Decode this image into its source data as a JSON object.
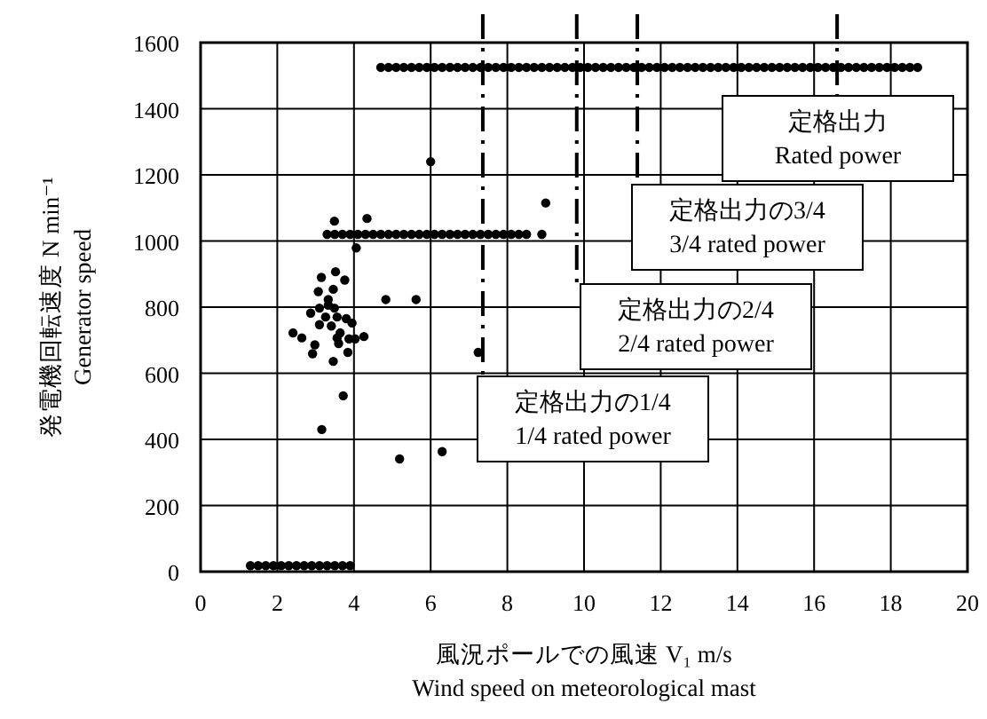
{
  "chart_data": {
    "type": "scatter",
    "xlabel": "風況ポールでの風速  V₁  m/s\nWind speed on meteorological mast",
    "ylabel": "発電機回転速度  N  min⁻¹\nGenerator speed",
    "xlim": [
      0,
      20
    ],
    "ylim": [
      0,
      1600
    ],
    "xticks": [
      0,
      2,
      4,
      6,
      8,
      10,
      12,
      14,
      16,
      18,
      20
    ],
    "yticks": [
      0,
      200,
      400,
      600,
      800,
      1000,
      1200,
      1400,
      1600
    ],
    "grid": true,
    "marker": "circle",
    "series": [
      {
        "color": "#000000",
        "x": [
          4.7,
          4.9,
          5.1,
          5.3,
          5.5,
          5.7,
          5.9,
          6.1,
          6.3,
          6.5,
          6.7,
          6.9,
          7.1,
          7.3,
          7.5,
          7.7,
          7.9,
          8.1,
          8.3,
          8.5,
          8.7,
          8.9,
          9.1,
          9.3,
          9.5,
          9.7,
          9.9,
          10.1,
          10.3,
          10.5,
          10.7,
          10.9,
          11.1,
          11.3,
          11.5,
          11.7,
          11.9,
          12.1,
          12.3,
          12.5,
          12.7,
          12.9,
          13.1,
          13.3,
          13.5,
          13.7,
          13.9,
          14.1,
          14.3,
          14.5,
          14.7,
          14.9,
          15.1,
          15.3,
          15.5,
          15.7,
          15.9,
          16.1,
          16.3,
          16.5,
          16.7,
          16.9,
          17.1,
          17.3,
          17.5,
          17.7,
          17.9,
          18.1,
          18.3,
          18.5,
          18.7
        ],
        "values": [
          1525,
          1525,
          1525,
          1525,
          1525,
          1525,
          1525,
          1525,
          1525,
          1525,
          1525,
          1525,
          1525,
          1525,
          1525,
          1525,
          1525,
          1525,
          1525,
          1525,
          1525,
          1525,
          1525,
          1525,
          1525,
          1525,
          1525,
          1525,
          1525,
          1525,
          1525,
          1525,
          1525,
          1525,
          1525,
          1525,
          1525,
          1525,
          1525,
          1525,
          1525,
          1525,
          1525,
          1525,
          1525,
          1525,
          1525,
          1525,
          1525,
          1525,
          1525,
          1525,
          1525,
          1525,
          1525,
          1525,
          1525,
          1525,
          1525,
          1525,
          1525,
          1525,
          1525,
          1525,
          1525,
          1525,
          1525,
          1525,
          1525,
          1525,
          1525
        ]
      },
      {
        "color": "#000000",
        "x": [
          3.3,
          3.5,
          3.7,
          3.9,
          4.1,
          4.3,
          4.5,
          4.7,
          4.9,
          5.1,
          5.3,
          5.5,
          5.7,
          5.9,
          6.1,
          6.3,
          6.5,
          6.7,
          6.9,
          7.1,
          7.3,
          7.5,
          7.7,
          7.9,
          8.1,
          8.3,
          8.5,
          8.9
        ],
        "values": [
          1020,
          1020,
          1020,
          1020,
          1020,
          1020,
          1020,
          1020,
          1020,
          1020,
          1020,
          1020,
          1020,
          1020,
          1020,
          1020,
          1020,
          1020,
          1020,
          1020,
          1020,
          1020,
          1020,
          1020,
          1020,
          1020,
          1020,
          1020
        ]
      },
      {
        "color": "#000000",
        "x": [
          1.3,
          1.5,
          1.7,
          1.9,
          2.1,
          2.3,
          2.5,
          2.7,
          2.9,
          3.1,
          3.3,
          3.5,
          3.7,
          3.9
        ],
        "values": [
          18,
          18,
          18,
          18,
          18,
          18,
          18,
          18,
          18,
          18,
          18,
          18,
          18,
          18
        ]
      },
      {
        "color": "#000000",
        "x": [
          6.0,
          9.0,
          3.49,
          4.34,
          4.06,
          3.15,
          3.52,
          3.76,
          3.07,
          3.46,
          3.33,
          4.83,
          5.62,
          2.87,
          3.1,
          3.33,
          3.49,
          3.26,
          3.56,
          3.8,
          3.95,
          3.41,
          3.1,
          3.64,
          3.56,
          3.87,
          4.03,
          4.26,
          2.41,
          2.64,
          2.98,
          2.92,
          3.6,
          3.84,
          3.46,
          7.24,
          3.72,
          3.16,
          5.19,
          6.3
        ],
        "values": [
          1240,
          1115,
          1060,
          1068,
          979,
          890,
          907,
          882,
          847,
          854,
          823,
          823,
          823,
          782,
          797,
          806,
          797,
          770,
          770,
          765,
          752,
          743,
          747,
          722,
          707,
          704,
          704,
          711,
          722,
          707,
          686,
          659,
          690,
          663,
          636,
          663,
          532,
          430,
          341,
          363
        ]
      }
    ],
    "ref_lines": [
      {
        "axis": "x",
        "value": 7.36,
        "label": "定格出力の1/4\n1/4 rated power"
      },
      {
        "axis": "x",
        "value": 9.81,
        "label": "定格出力の2/4\n2/4 rated power"
      },
      {
        "axis": "x",
        "value": 11.39,
        "label": "定格出力の3/4\n3/4 rated power"
      },
      {
        "axis": "x",
        "value": 16.6,
        "label": "定格出力\nRated power"
      }
    ]
  }
}
